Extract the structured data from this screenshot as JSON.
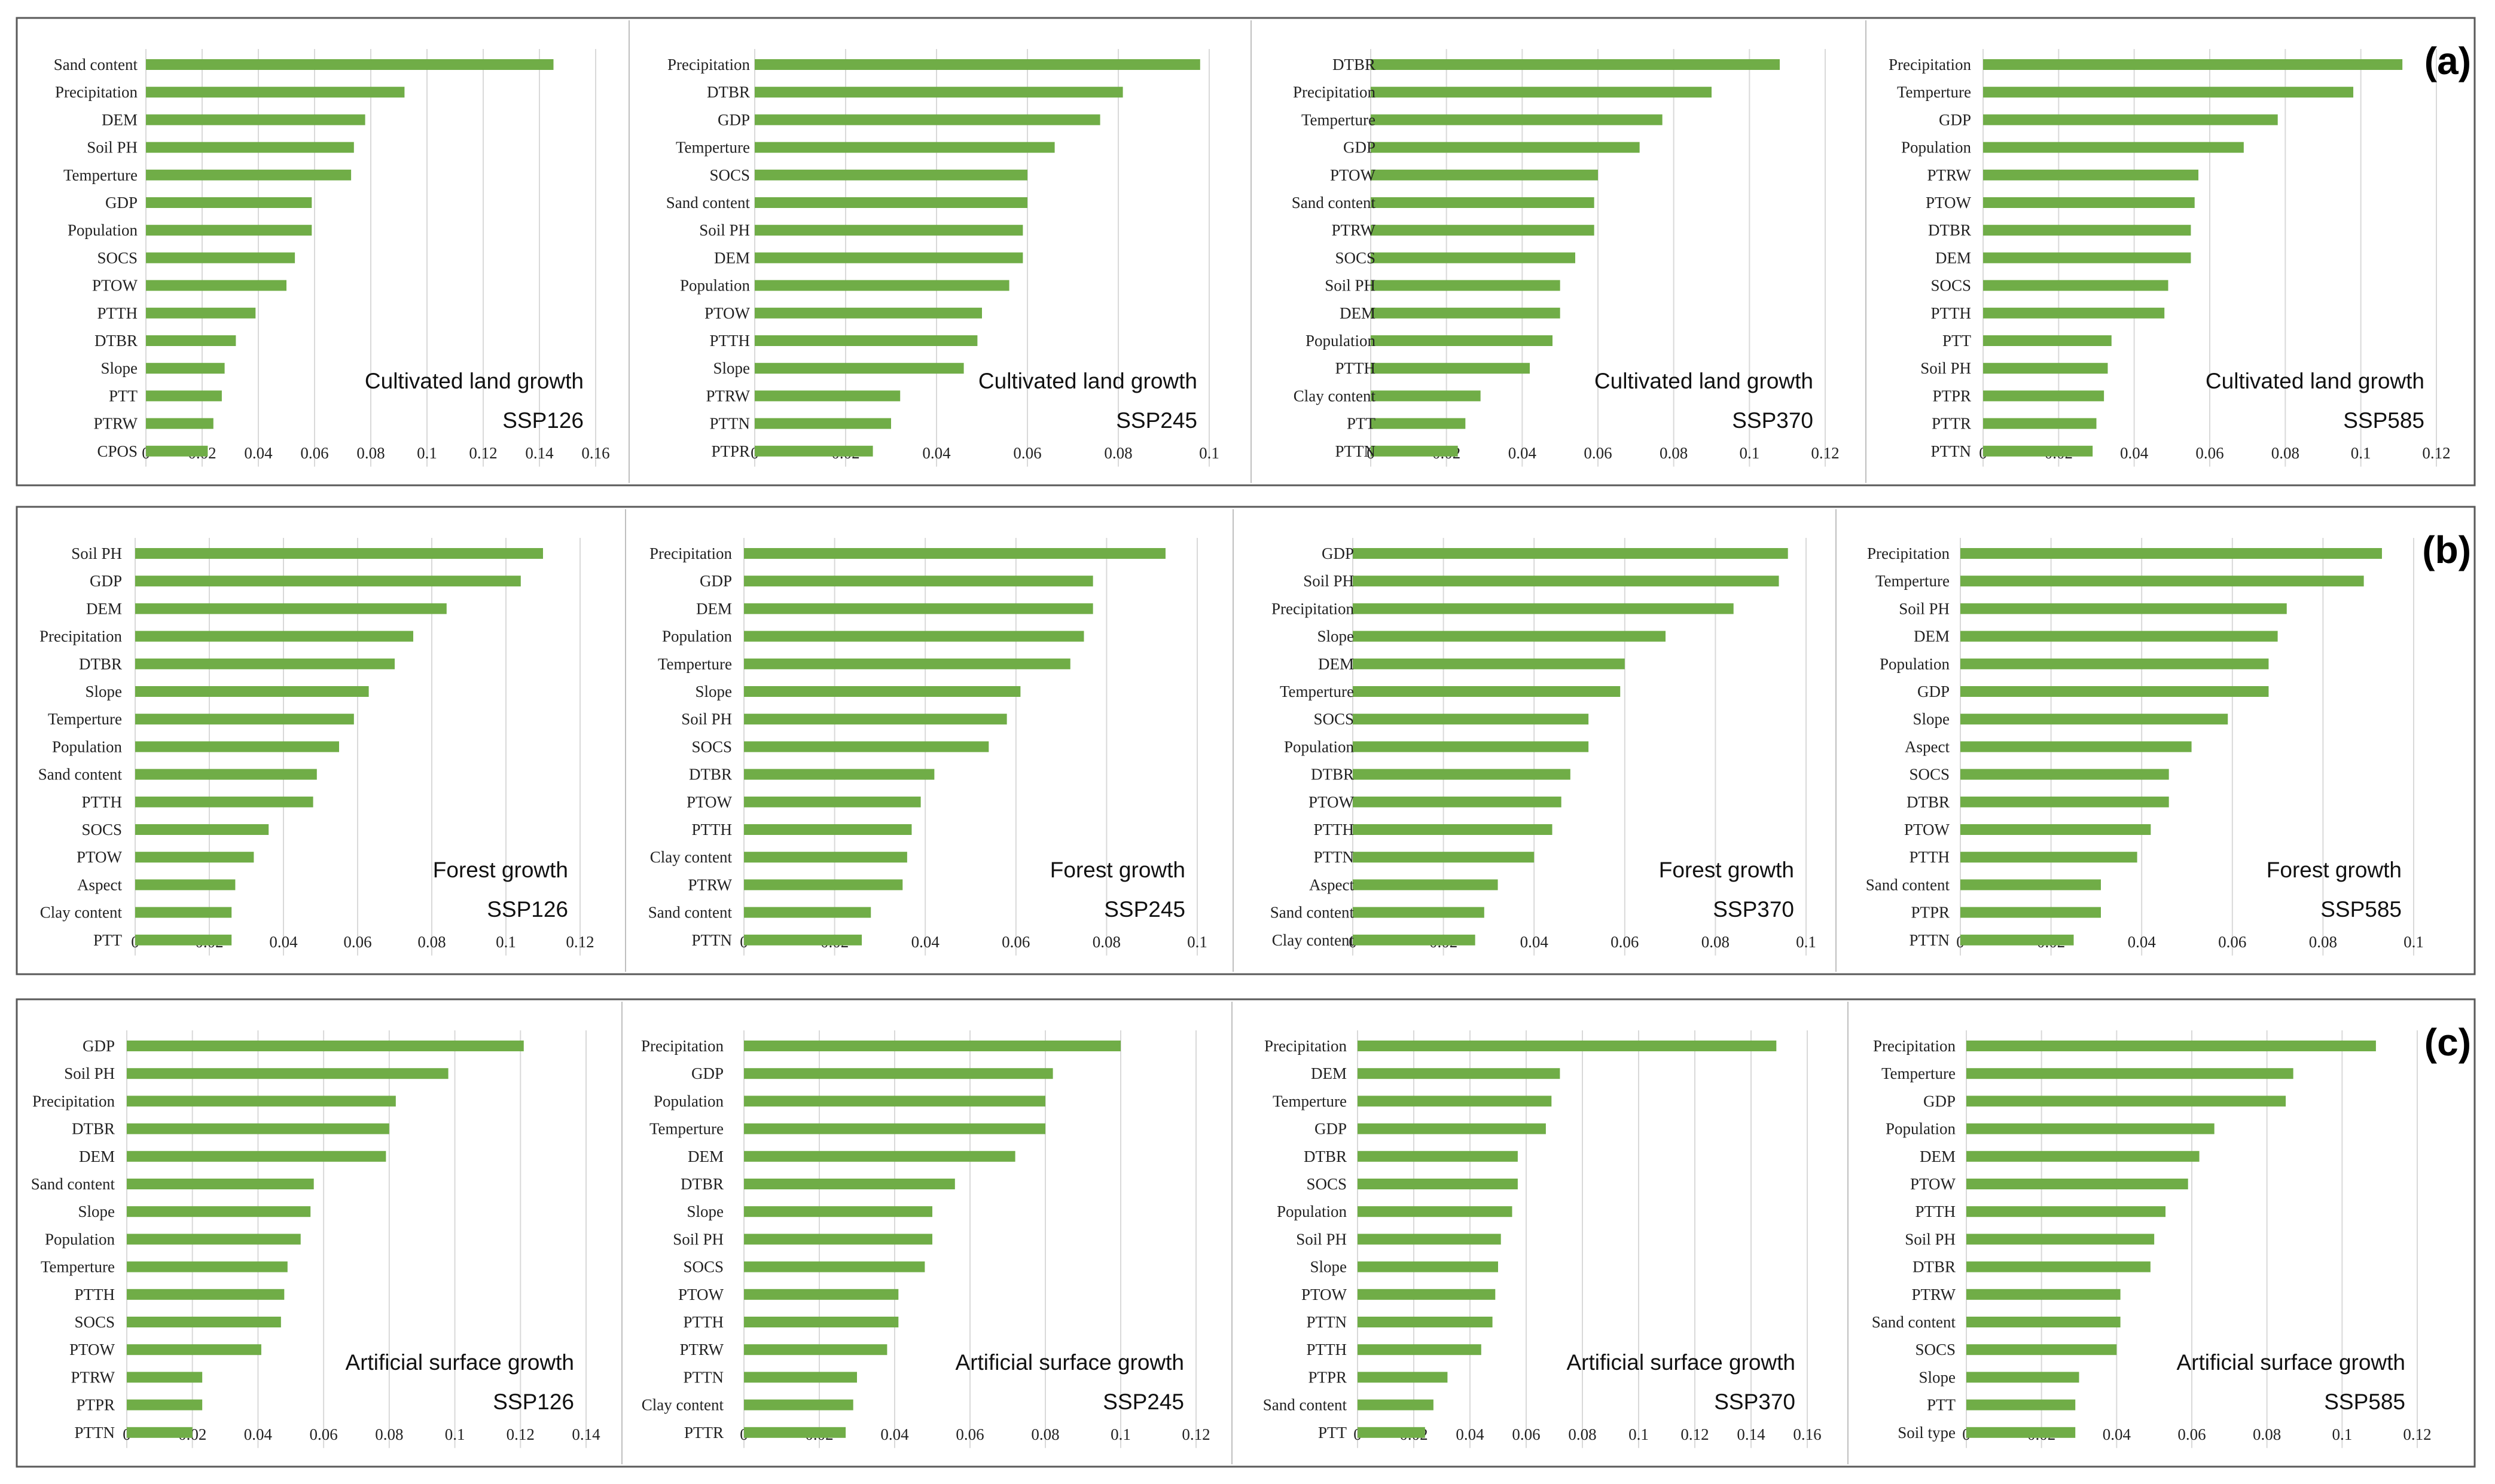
{
  "colors": {
    "bar": "#70ad47",
    "grid": "#d9d9d9",
    "frame": "#595959",
    "divider": "#bfbfbf"
  },
  "rows": [
    {
      "label": "(a)",
      "kind": "Cultivated land growth"
    },
    {
      "label": "(b)",
      "kind": "Forest growth"
    },
    {
      "label": "(c)",
      "kind": "Artificial surface growth"
    }
  ],
  "chart_data": [
    {
      "type": "bar",
      "orientation": "horizontal",
      "row": 0,
      "col": 0,
      "title": "Cultivated land growth",
      "scenario": "SSP126",
      "categories": [
        "Sand content",
        "Precipitation",
        "DEM",
        "Soil PH",
        "Temperture",
        "GDP",
        "Population",
        "SOCS",
        "PTOW",
        "PTTH",
        "DTBR",
        "Slope",
        "PTT",
        "PTRW",
        "CPOS"
      ],
      "values": [
        0.145,
        0.092,
        0.078,
        0.074,
        0.073,
        0.059,
        0.059,
        0.053,
        0.05,
        0.039,
        0.032,
        0.028,
        0.027,
        0.024,
        0.022
      ],
      "xticks": [
        "0",
        "0.02",
        "0.04",
        "0.06",
        "0.08",
        "0.1",
        "0.12",
        "0.14",
        "0.16"
      ],
      "xlim": [
        0,
        0.16
      ]
    },
    {
      "type": "bar",
      "orientation": "horizontal",
      "row": 0,
      "col": 1,
      "title": "Cultivated land growth",
      "scenario": "SSP245",
      "categories": [
        "Precipitation",
        "DTBR",
        "GDP",
        "Temperture",
        "SOCS",
        "Sand content",
        "Soil PH",
        "DEM",
        "Population",
        "PTOW",
        "PTTH",
        "Slope",
        "PTRW",
        "PTTN",
        "PTPR"
      ],
      "values": [
        0.098,
        0.081,
        0.076,
        0.066,
        0.06,
        0.06,
        0.059,
        0.059,
        0.056,
        0.05,
        0.049,
        0.046,
        0.032,
        0.03,
        0.026
      ],
      "xticks": [
        "0",
        "0.02",
        "0.04",
        "0.06",
        "0.08",
        "0.1"
      ],
      "xlim": [
        0,
        0.1
      ]
    },
    {
      "type": "bar",
      "orientation": "horizontal",
      "row": 0,
      "col": 2,
      "title": "Cultivated land growth",
      "scenario": "SSP370",
      "categories": [
        "DTBR",
        "Precipitation",
        "Temperture",
        "GDP",
        "PTOW",
        "Sand content",
        "PTRW",
        "SOCS",
        "Soil PH",
        "DEM",
        "Population",
        "PTTH",
        "Clay content",
        "PTT",
        "PTTN"
      ],
      "values": [
        0.108,
        0.09,
        0.077,
        0.071,
        0.06,
        0.059,
        0.059,
        0.054,
        0.05,
        0.05,
        0.048,
        0.042,
        0.029,
        0.025,
        0.023
      ],
      "xticks": [
        "0",
        "0.02",
        "0.04",
        "0.06",
        "0.08",
        "0.1",
        "0.12"
      ],
      "xlim": [
        0,
        0.12
      ]
    },
    {
      "type": "bar",
      "orientation": "horizontal",
      "row": 0,
      "col": 3,
      "title": "Cultivated land growth",
      "scenario": "SSP585",
      "categories": [
        "Precipitation",
        "Temperture",
        "GDP",
        "Population",
        "PTRW",
        "PTOW",
        "DTBR",
        "DEM",
        "SOCS",
        "PTTH",
        "PTT",
        "Soil PH",
        "PTPR",
        "PTTR",
        "PTTN"
      ],
      "values": [
        0.111,
        0.098,
        0.078,
        0.069,
        0.057,
        0.056,
        0.055,
        0.055,
        0.049,
        0.048,
        0.034,
        0.033,
        0.032,
        0.03,
        0.029
      ],
      "xticks": [
        "0",
        "0.02",
        "0.04",
        "0.06",
        "0.08",
        "0.1",
        "0.12"
      ],
      "xlim": [
        0,
        0.12
      ]
    },
    {
      "type": "bar",
      "orientation": "horizontal",
      "row": 1,
      "col": 0,
      "title": "Forest growth",
      "scenario": "SSP126",
      "categories": [
        "Soil PH",
        "GDP",
        "DEM",
        "Precipitation",
        "DTBR",
        "Slope",
        "Temperture",
        "Population",
        "Sand content",
        "PTTH",
        "SOCS",
        "PTOW",
        "Aspect",
        "Clay content",
        "PTT"
      ],
      "values": [
        0.11,
        0.104,
        0.084,
        0.075,
        0.07,
        0.063,
        0.059,
        0.055,
        0.049,
        0.048,
        0.036,
        0.032,
        0.027,
        0.026,
        0.026
      ],
      "xticks": [
        "0",
        "0.02",
        "0.04",
        "0.06",
        "0.08",
        "0.1",
        "0.12"
      ],
      "xlim": [
        0,
        0.12
      ]
    },
    {
      "type": "bar",
      "orientation": "horizontal",
      "row": 1,
      "col": 1,
      "title": "Forest growth",
      "scenario": "SSP245",
      "categories": [
        "Precipitation",
        "GDP",
        "DEM",
        "Population",
        "Temperture",
        "Slope",
        "Soil PH",
        "SOCS",
        "DTBR",
        "PTOW",
        "PTTH",
        "Clay content",
        "PTRW",
        "Sand content",
        "PTTN"
      ],
      "values": [
        0.093,
        0.077,
        0.077,
        0.075,
        0.072,
        0.061,
        0.058,
        0.054,
        0.042,
        0.039,
        0.037,
        0.036,
        0.035,
        0.028,
        0.026
      ],
      "xticks": [
        "0",
        "0.02",
        "0.04",
        "0.06",
        "0.08",
        "0.1"
      ],
      "xlim": [
        0,
        0.1
      ]
    },
    {
      "type": "bar",
      "orientation": "horizontal",
      "row": 1,
      "col": 2,
      "title": "Forest growth",
      "scenario": "SSP370",
      "categories": [
        "GDP",
        "Soil PH",
        "Precipitation",
        "Slope",
        "DEM",
        "Temperture",
        "SOCS",
        "Population",
        "DTBR",
        "PTOW",
        "PTTH",
        "PTTN",
        "Aspect",
        "Sand content",
        "Clay content"
      ],
      "values": [
        0.096,
        0.094,
        0.084,
        0.069,
        0.06,
        0.059,
        0.052,
        0.052,
        0.048,
        0.046,
        0.044,
        0.04,
        0.032,
        0.029,
        0.027
      ],
      "xticks": [
        "0",
        "0.02",
        "0.04",
        "0.06",
        "0.08",
        "0.1"
      ],
      "xlim": [
        0,
        0.1
      ]
    },
    {
      "type": "bar",
      "orientation": "horizontal",
      "row": 1,
      "col": 3,
      "title": "Forest growth",
      "scenario": "SSP585",
      "categories": [
        "Precipitation",
        "Temperture",
        "Soil PH",
        "DEM",
        "Population",
        "GDP",
        "Slope",
        "Aspect",
        "SOCS",
        "DTBR",
        "PTOW",
        "PTTH",
        "Sand content",
        "PTPR",
        "PTTN"
      ],
      "values": [
        0.093,
        0.089,
        0.072,
        0.07,
        0.068,
        0.068,
        0.059,
        0.051,
        0.046,
        0.046,
        0.042,
        0.039,
        0.031,
        0.031,
        0.025
      ],
      "xticks": [
        "0",
        "0.02",
        "0.04",
        "0.06",
        "0.08",
        "0.1"
      ],
      "xlim": [
        0,
        0.1
      ]
    },
    {
      "type": "bar",
      "orientation": "horizontal",
      "row": 2,
      "col": 0,
      "title": "Artificial surface growth",
      "scenario": "SSP126",
      "categories": [
        "GDP",
        "Soil PH",
        "Precipitation",
        "DTBR",
        "DEM",
        "Sand content",
        "Slope",
        "Population",
        "Temperture",
        "PTTH",
        "SOCS",
        "PTOW",
        "PTRW",
        "PTPR",
        "PTTN"
      ],
      "values": [
        0.121,
        0.098,
        0.082,
        0.08,
        0.079,
        0.057,
        0.056,
        0.053,
        0.049,
        0.048,
        0.047,
        0.041,
        0.023,
        0.023,
        0.02
      ],
      "xticks": [
        "0",
        "0.02",
        "0.04",
        "0.06",
        "0.08",
        "0.1",
        "0.12",
        "0.14"
      ],
      "xlim": [
        0,
        0.14
      ]
    },
    {
      "type": "bar",
      "orientation": "horizontal",
      "row": 2,
      "col": 1,
      "title": "Artificial surface growth",
      "scenario": "SSP245",
      "categories": [
        "Precipitation",
        "GDP",
        "Population",
        "Temperture",
        "DEM",
        "DTBR",
        "Slope",
        "Soil PH",
        "SOCS",
        "PTOW",
        "PTTH",
        "PTRW",
        "PTTN",
        "Clay content",
        "PTTR"
      ],
      "values": [
        0.1,
        0.082,
        0.08,
        0.08,
        0.072,
        0.056,
        0.05,
        0.05,
        0.048,
        0.041,
        0.041,
        0.038,
        0.03,
        0.029,
        0.027
      ],
      "xticks": [
        "0",
        "0.02",
        "0.04",
        "0.06",
        "0.08",
        "0.1",
        "0.12"
      ],
      "xlim": [
        0,
        0.12
      ]
    },
    {
      "type": "bar",
      "orientation": "horizontal",
      "row": 2,
      "col": 2,
      "title": "Artificial surface growth",
      "scenario": "SSP370",
      "categories": [
        "Precipitation",
        "DEM",
        "Temperture",
        "GDP",
        "DTBR",
        "SOCS",
        "Population",
        "Soil PH",
        "Slope",
        "PTOW",
        "PTTN",
        "PTTH",
        "PTPR",
        "Sand content",
        "PTT"
      ],
      "values": [
        0.149,
        0.072,
        0.069,
        0.067,
        0.057,
        0.057,
        0.055,
        0.051,
        0.05,
        0.049,
        0.048,
        0.044,
        0.032,
        0.027,
        0.024
      ],
      "xticks": [
        "0",
        "0.02",
        "0.04",
        "0.06",
        "0.08",
        "0.1",
        "0.12",
        "0.14",
        "0.16"
      ],
      "xlim": [
        0,
        0.16
      ]
    },
    {
      "type": "bar",
      "orientation": "horizontal",
      "row": 2,
      "col": 3,
      "title": "Artificial surface growth",
      "scenario": "SSP585",
      "categories": [
        "Precipitation",
        "Temperture",
        "GDP",
        "Population",
        "DEM",
        "PTOW",
        "PTTH",
        "Soil PH",
        "DTBR",
        "PTRW",
        "Sand content",
        "SOCS",
        "Slope",
        "PTT",
        "Soil type"
      ],
      "values": [
        0.109,
        0.087,
        0.085,
        0.066,
        0.062,
        0.059,
        0.053,
        0.05,
        0.049,
        0.041,
        0.041,
        0.04,
        0.03,
        0.029,
        0.029
      ],
      "xticks": [
        "0",
        "0.02",
        "0.04",
        "0.06",
        "0.08",
        "0.1",
        "0.12"
      ],
      "xlim": [
        0,
        0.12
      ]
    }
  ]
}
